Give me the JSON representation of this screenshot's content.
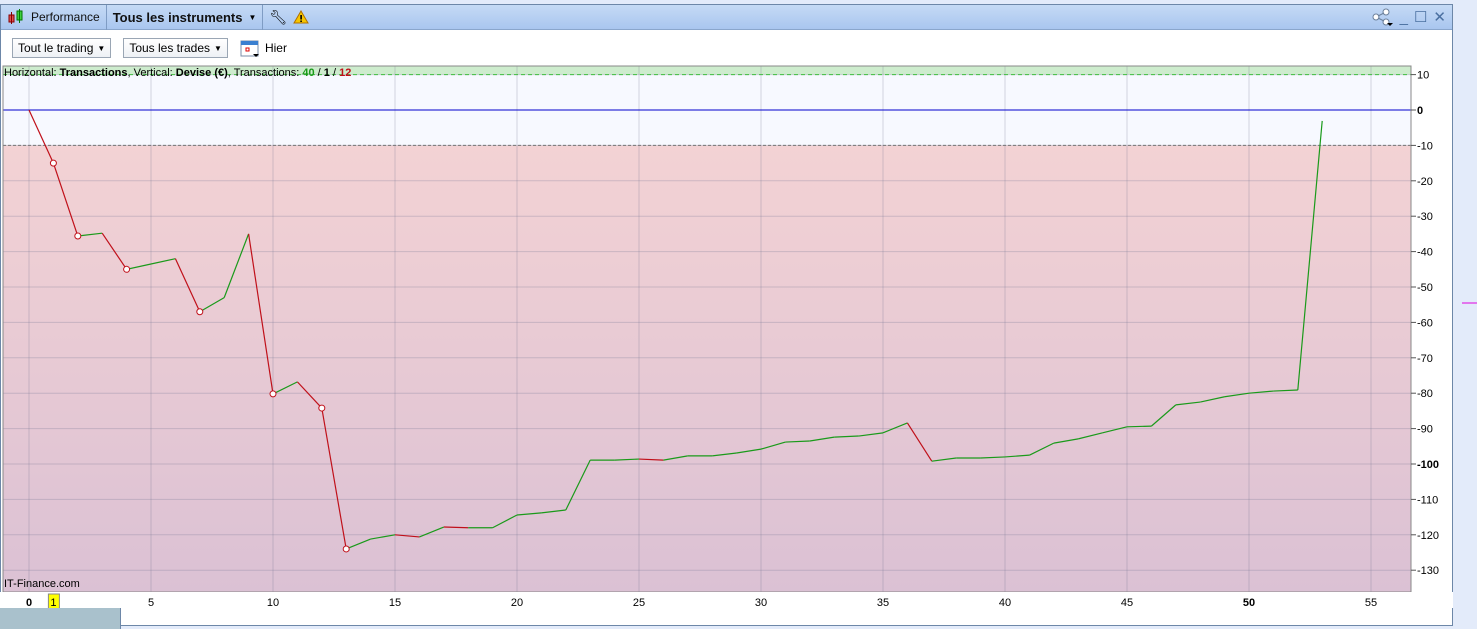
{
  "titlebar": {
    "panel_label": "Performance",
    "instrument_select": "Tous les instruments",
    "icons": [
      "candlestick-icon",
      "wrench-icon",
      "warning-icon",
      "share-icon",
      "minimize-icon",
      "maximize-icon",
      "close-icon"
    ]
  },
  "toolbar": {
    "scope_select": "Tout le trading",
    "trades_select": "Tous les trades",
    "date_label": "Hier"
  },
  "info": {
    "prefix_h": "Horizontal: ",
    "h_value": "Transactions",
    "prefix_v": ", Vertical: ",
    "v_value": "Devise (€)",
    "prefix_t": ", Transactions: ",
    "t_win": "40",
    "sep1": " / ",
    "t_even": "1",
    "sep2": " / ",
    "t_loss": "12"
  },
  "watermark": "IT-Finance.com",
  "cursor_marker": "1",
  "colors": {
    "up": "#1a9a1a",
    "down": "#c0101a",
    "zero_line": "#0000cc",
    "profit_band": "#cdeccd",
    "loss_band_top": "#f3d2d4",
    "loss_band_bottom": "#dbc1d4"
  },
  "chart_data": {
    "type": "line",
    "xlabel": "Transactions",
    "ylabel": "Devise (€)",
    "xlim": [
      -1,
      56
    ],
    "ylim": [
      -136,
      12.4
    ],
    "x_ticks": [
      0,
      5,
      10,
      15,
      20,
      25,
      30,
      35,
      40,
      45,
      50,
      55
    ],
    "y_ticks": [
      10,
      0,
      -10,
      -20,
      -30,
      -40,
      -50,
      -60,
      -70,
      -80,
      -90,
      -100,
      -110,
      -120,
      -130
    ],
    "grid": true,
    "x": [
      0,
      1,
      2,
      3,
      4,
      5,
      6,
      7,
      8,
      9,
      10,
      11,
      12,
      13,
      14,
      15,
      16,
      17,
      18,
      19,
      20,
      21,
      22,
      23,
      24,
      25,
      26,
      27,
      28,
      29,
      30,
      31,
      32,
      33,
      34,
      35,
      36,
      37,
      38,
      39,
      40,
      41,
      42,
      43,
      44,
      45,
      46,
      47,
      48,
      49,
      50,
      51,
      52,
      53
    ],
    "y": [
      0,
      -15,
      -35.6,
      -34.8,
      -45,
      -43.5,
      -42,
      -57,
      -53,
      -35,
      -80.2,
      -76.8,
      -84.2,
      -124,
      -121.2,
      -120,
      -120.6,
      -117.8,
      -118,
      -118,
      -114.4,
      -113.8,
      -113,
      -98.9,
      -98.9,
      -98.6,
      -98.9,
      -97.7,
      -97.7,
      -96.9,
      -95.8,
      -93.8,
      -93.5,
      -92.4,
      -92.1,
      -91.2,
      -88.4,
      -99.2,
      -98.3,
      -98.3,
      -98,
      -97.5,
      -94.1,
      -92.9,
      -91.2,
      -89.5,
      -89.3,
      -83.3,
      -82.5,
      -81,
      -80,
      -79.4,
      -79.1,
      -3.1
    ],
    "reference_lines": [
      10,
      0,
      -10
    ]
  }
}
